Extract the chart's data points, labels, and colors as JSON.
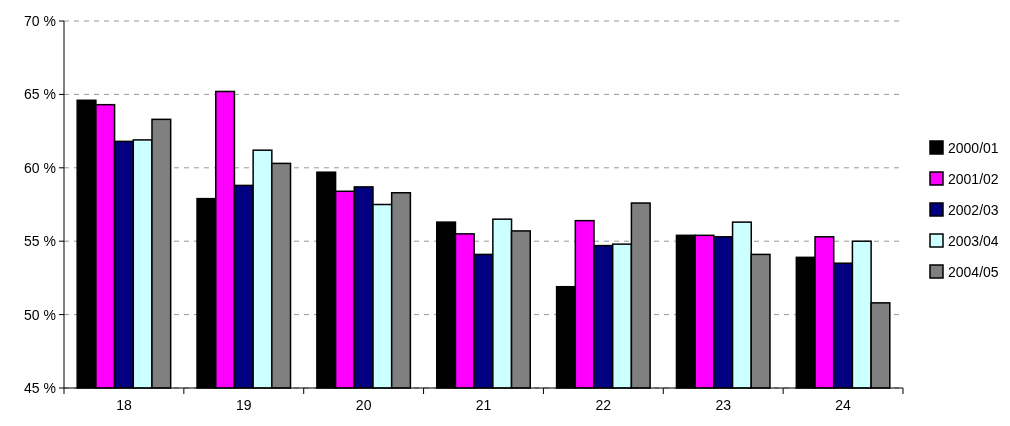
{
  "chart_data": {
    "type": "bar",
    "categories": [
      "18",
      "19",
      "20",
      "21",
      "22",
      "23",
      "24"
    ],
    "series": [
      {
        "name": "2000/01",
        "color": "#000000",
        "values": [
          64.6,
          57.9,
          59.7,
          56.3,
          51.9,
          55.4,
          53.9
        ]
      },
      {
        "name": "2001/02",
        "color": "#ff00ff",
        "values": [
          64.3,
          65.2,
          58.4,
          55.5,
          56.4,
          55.4,
          55.3
        ]
      },
      {
        "name": "2002/03",
        "color": "#000080",
        "values": [
          61.8,
          58.8,
          58.7,
          54.1,
          54.7,
          55.3,
          53.5
        ]
      },
      {
        "name": "2003/04",
        "color": "#ccffff",
        "values": [
          61.9,
          61.2,
          57.5,
          56.5,
          54.8,
          56.3,
          55.0
        ]
      },
      {
        "name": "2004/05",
        "color": "#808080",
        "values": [
          63.3,
          60.3,
          58.3,
          55.7,
          57.6,
          54.1,
          50.8
        ]
      }
    ],
    "ylim": [
      45,
      70
    ],
    "yticks": [
      {
        "value": 45,
        "label": "45 %"
      },
      {
        "value": 50,
        "label": "50 %"
      },
      {
        "value": 55,
        "label": "55 %"
      },
      {
        "value": 60,
        "label": "60 %"
      },
      {
        "value": 65,
        "label": "65 %"
      },
      {
        "value": 70,
        "label": "70 %"
      }
    ],
    "grid": "y",
    "legend": "right"
  }
}
